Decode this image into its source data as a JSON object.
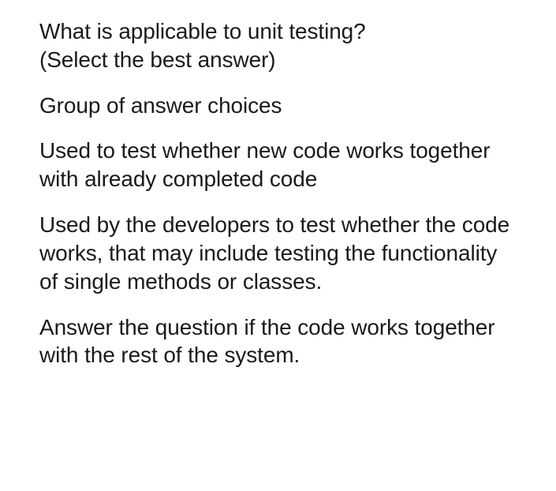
{
  "question": {
    "prompt_line1": "What is applicable to unit testing?",
    "prompt_line2": "(Select the best answer)",
    "group_label": "Group of answer choices",
    "choices": [
      "Used to test whether new code works together with already completed code",
      "Used by the developers to test whether the code works, that may include testing the functionality of single methods or classes.",
      "Answer the question if the code works together with the rest of the system."
    ]
  },
  "colors": {
    "text": "#1a1a1a",
    "background": "#ffffff"
  },
  "typography": {
    "font_size_pt": 21,
    "line_height": 1.28,
    "font_weight": 400
  }
}
